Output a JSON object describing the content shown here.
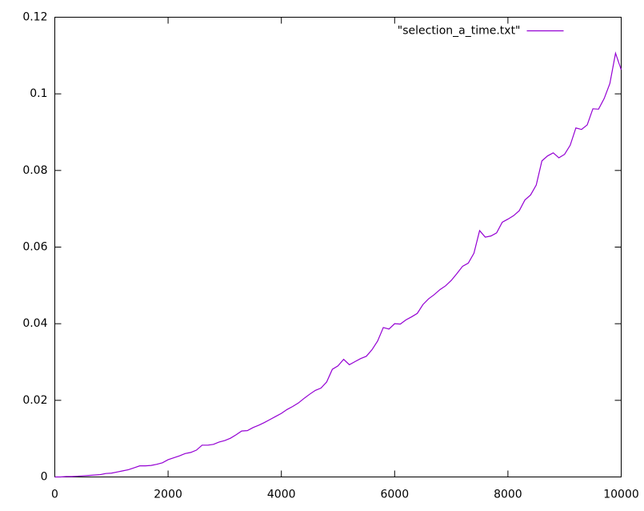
{
  "chart_data": {
    "type": "line",
    "x": [
      0,
      100,
      200,
      300,
      400,
      500,
      600,
      700,
      800,
      900,
      1000,
      1100,
      1200,
      1300,
      1400,
      1500,
      1600,
      1700,
      1800,
      1900,
      2000,
      2100,
      2200,
      2300,
      2400,
      2500,
      2600,
      2700,
      2800,
      2900,
      3000,
      3100,
      3200,
      3300,
      3400,
      3500,
      3600,
      3700,
      3800,
      3900,
      4000,
      4100,
      4200,
      4300,
      4400,
      4500,
      4600,
      4700,
      4800,
      4900,
      5000,
      5100,
      5200,
      5300,
      5400,
      5500,
      5600,
      5700,
      5800,
      5900,
      6000,
      6100,
      6200,
      6300,
      6400,
      6500,
      6600,
      6700,
      6800,
      6900,
      7000,
      7100,
      7200,
      7300,
      7400,
      7500,
      7600,
      7700,
      7800,
      7900,
      8000,
      8100,
      8200,
      8300,
      8400,
      8500,
      8600,
      8700,
      8800,
      8900,
      9000,
      9100,
      9200,
      9300,
      9400,
      9500,
      9600,
      9700,
      9800,
      9900,
      10000
    ],
    "series": [
      {
        "name": "\"selection_a_time.txt\"",
        "color": "#9400d3",
        "values": [
          0,
          0,
          0.0001,
          0.0001,
          0.0002,
          0.0003,
          0.0004,
          0.0005,
          0.0006,
          0.0009,
          0.001,
          0.0013,
          0.0016,
          0.0019,
          0.0024,
          0.0029,
          0.0029,
          0.003,
          0.0033,
          0.0037,
          0.0045,
          0.005,
          0.0055,
          0.0061,
          0.0064,
          0.007,
          0.0083,
          0.0083,
          0.0085,
          0.0091,
          0.0095,
          0.0101,
          0.011,
          0.012,
          0.0121,
          0.0129,
          0.0135,
          0.0142,
          0.015,
          0.0158,
          0.0166,
          0.0176,
          0.0184,
          0.0193,
          0.0205,
          0.0216,
          0.0226,
          0.0232,
          0.0248,
          0.0281,
          0.029,
          0.0307,
          0.0293,
          0.0301,
          0.0309,
          0.0315,
          0.0332,
          0.0355,
          0.039,
          0.0386,
          0.04,
          0.0399,
          0.041,
          0.0418,
          0.0427,
          0.045,
          0.0465,
          0.0476,
          0.0489,
          0.0499,
          0.0513,
          0.0531,
          0.055,
          0.0558,
          0.0584,
          0.0643,
          0.0626,
          0.0629,
          0.0637,
          0.0665,
          0.0673,
          0.0682,
          0.0695,
          0.0723,
          0.0736,
          0.0762,
          0.0825,
          0.0838,
          0.0846,
          0.0833,
          0.0842,
          0.0866,
          0.0911,
          0.0907,
          0.0919,
          0.0961,
          0.096,
          0.0988,
          0.1027,
          0.1106,
          0.1063
        ]
      }
    ],
    "xlim": [
      0,
      10000
    ],
    "xticks": [
      0,
      2000,
      4000,
      6000,
      8000,
      10000
    ],
    "ylim": [
      0,
      0.12
    ],
    "yticks": [
      0,
      0.02,
      0.04,
      0.06,
      0.08,
      0.1,
      0.12
    ],
    "grid": false,
    "legend": "top-right"
  }
}
